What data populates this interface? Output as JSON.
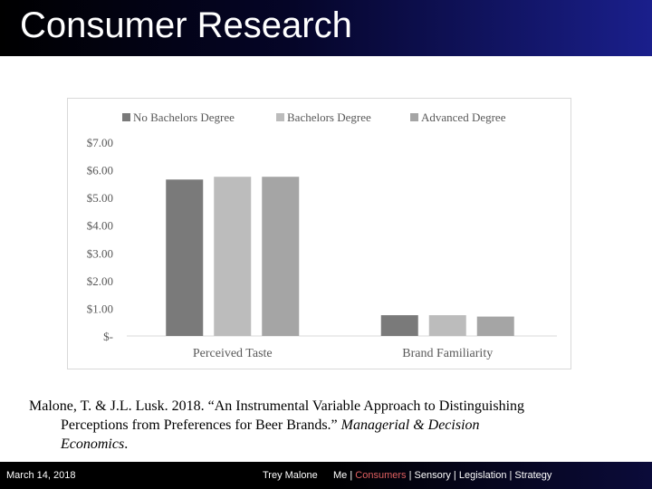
{
  "slide": {
    "title": "Consumer Research"
  },
  "chart_data": {
    "type": "bar",
    "categories": [
      "Perceived Taste",
      "Brand Familiarity"
    ],
    "series": [
      {
        "name": "No Bachelors Degree",
        "values": [
          5.65,
          0.75
        ],
        "color": "#7a7a7a"
      },
      {
        "name": "Bachelors Degree",
        "values": [
          5.75,
          0.75
        ],
        "color": "#bcbcbc"
      },
      {
        "name": "Advanced Degree",
        "values": [
          5.75,
          0.7
        ],
        "color": "#a5a5a5"
      }
    ],
    "y_ticks": [
      "$-",
      "$1.00",
      "$2.00",
      "$3.00",
      "$4.00",
      "$5.00",
      "$6.00",
      "$7.00"
    ],
    "ylim": [
      0,
      7
    ],
    "legend_position": "top",
    "grid": false
  },
  "citation": {
    "line1": "Malone, T. & J.L. Lusk. 2018. “An Instrumental Variable Approach to Distinguishing",
    "line2_plain": "Perceptions from Preferences for Beer Brands.” ",
    "line2_italic": "Managerial & Decision",
    "line3_italic": "Economics",
    "line3_end": "."
  },
  "footer": {
    "date": "March 14, 2018",
    "author": "Trey Malone",
    "nav": [
      {
        "label": "Me",
        "active": false
      },
      {
        "label": "Consumers",
        "active": true
      },
      {
        "label": "Sensory",
        "active": false
      },
      {
        "label": "Legislation",
        "active": false
      },
      {
        "label": "Strategy",
        "active": false
      }
    ],
    "nav_separator": "|",
    "active_color": "#e06060"
  }
}
